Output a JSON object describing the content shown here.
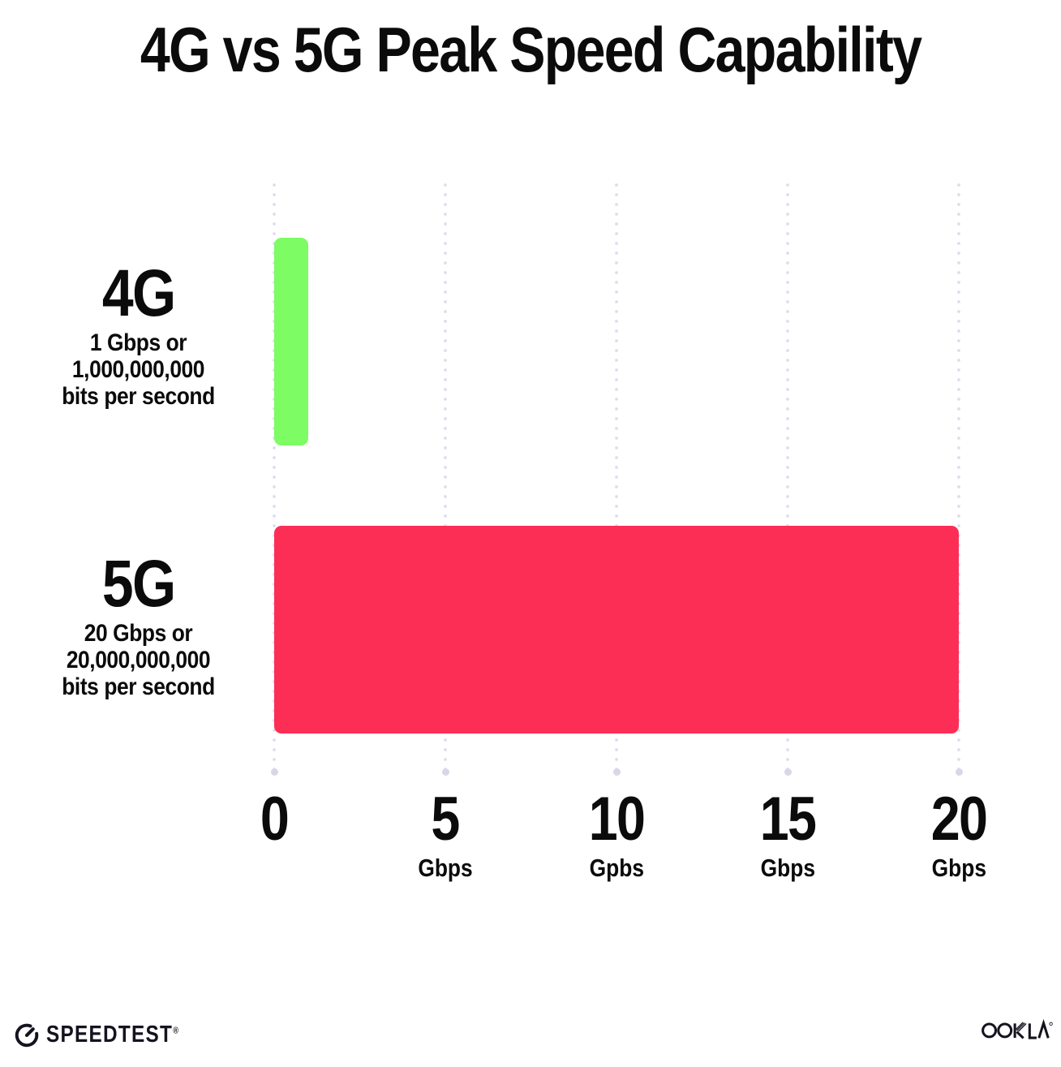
{
  "title": "4G vs 5G Peak Speed Capability",
  "chart_data": {
    "type": "bar",
    "orientation": "horizontal",
    "title": "4G vs 5G Peak Speed Capability",
    "categories": [
      "4G",
      "5G"
    ],
    "values": [
      1,
      20
    ],
    "value_unit": "Gbps",
    "bar_colors": [
      "#7dfc64",
      "#fc2e56"
    ],
    "category_sublabels": [
      [
        "1 Gbps or",
        "1,000,000,000",
        "bits per second"
      ],
      [
        "20 Gbps or",
        "20,000,000,000",
        "bits per second"
      ]
    ],
    "xlim": [
      0,
      20
    ],
    "x_ticks": [
      {
        "value": 0,
        "label": "0",
        "unit": ""
      },
      {
        "value": 5,
        "label": "5",
        "unit": "Gbps"
      },
      {
        "value": 10,
        "label": "10",
        "unit": "Gpbs"
      },
      {
        "value": 15,
        "label": "15",
        "unit": "Gbps"
      },
      {
        "value": 20,
        "label": "20",
        "unit": "Gbps"
      }
    ],
    "grid": "vertical dotted gridlines",
    "legend": "none"
  },
  "footer": {
    "speedtest_label": "SPEEDTEST",
    "registered_mark": "®",
    "ookla_label": "OOKLA"
  },
  "colors": {
    "bar_4g": "#7dfc64",
    "bar_5g": "#fc2e56",
    "grid_dot": "#dcdcec",
    "text": "#0b0b0c",
    "background": "#ffffff",
    "logo": "#14131f"
  }
}
